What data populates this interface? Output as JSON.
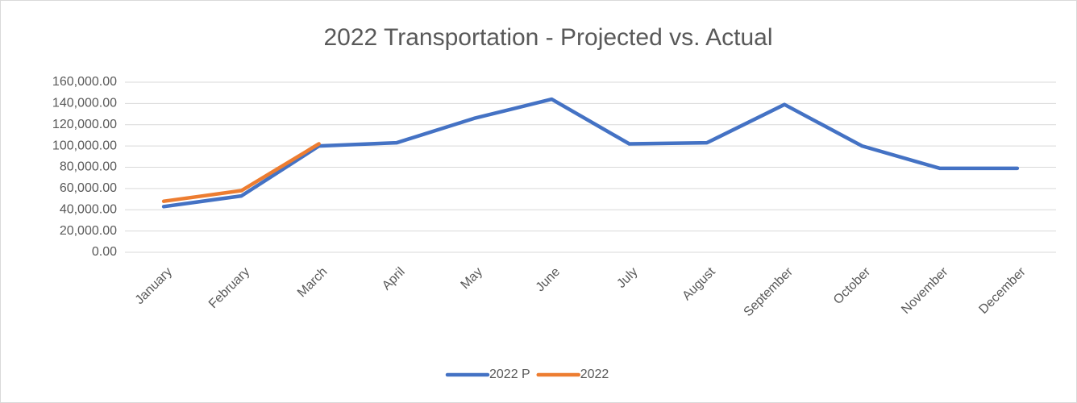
{
  "chart_data": {
    "type": "line",
    "title": "2022 Transportation - Projected vs. Actual",
    "categories": [
      "January",
      "February",
      "March",
      "April",
      "May",
      "June",
      "July",
      "August",
      "September",
      "October",
      "November",
      "December"
    ],
    "series": [
      {
        "name": "2022 P",
        "color": "#4472c4",
        "values": [
          43000,
          53000,
          100000,
          103000,
          126000,
          144000,
          102000,
          103000,
          139000,
          100000,
          79000,
          79000
        ]
      },
      {
        "name": "2022",
        "color": "#ed7d31",
        "values": [
          48000,
          58000,
          102000,
          null,
          null,
          null,
          null,
          null,
          null,
          null,
          null,
          null
        ]
      }
    ],
    "ylim": [
      0,
      160000
    ],
    "yticks": [
      {
        "value": 0,
        "label": "0.00"
      },
      {
        "value": 20000,
        "label": "20,000.00"
      },
      {
        "value": 40000,
        "label": "40,000.00"
      },
      {
        "value": 60000,
        "label": "60,000.00"
      },
      {
        "value": 80000,
        "label": "80,000.00"
      },
      {
        "value": 100000,
        "label": "100,000.00"
      },
      {
        "value": 120000,
        "label": "120,000.00"
      },
      {
        "value": 140000,
        "label": "140,000.00"
      },
      {
        "value": 160000,
        "label": "160,000.00"
      }
    ],
    "grid": true,
    "legend": "bottom"
  }
}
